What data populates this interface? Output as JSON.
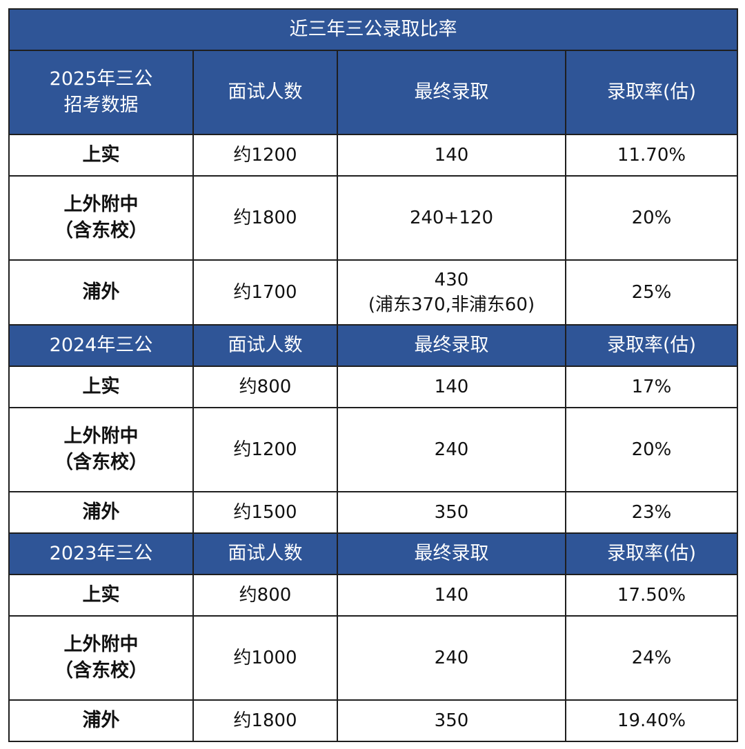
{
  "title": "近三年三公录取比率",
  "sections": [
    {
      "header": {
        "label_l1": "2025年三公",
        "label_l2": "招考数据",
        "col2": "面试人数",
        "col3": "最终录取",
        "col4": "录取率(估)"
      },
      "rows": [
        {
          "school_l1": "上实",
          "school_l2": "",
          "interviews": "约1200",
          "admitted_l1": "140",
          "admitted_l2": "",
          "rate": "11.70%"
        },
        {
          "school_l1": "上外附中",
          "school_l2": "（含东校）",
          "interviews": "约1800",
          "admitted_l1": "240+120",
          "admitted_l2": "",
          "rate": "20%"
        },
        {
          "school_l1": "浦外",
          "school_l2": "",
          "interviews": "约1700",
          "admitted_l1": "430",
          "admitted_l2": "(浦东370,非浦东60)",
          "rate": "25%"
        }
      ]
    },
    {
      "header": {
        "label_l1": "2024年三公",
        "label_l2": "",
        "col2": "面试人数",
        "col3": "最终录取",
        "col4": "录取率(估)"
      },
      "rows": [
        {
          "school_l1": "上实",
          "school_l2": "",
          "interviews": "约800",
          "admitted_l1": "140",
          "admitted_l2": "",
          "rate": "17%"
        },
        {
          "school_l1": "上外附中",
          "school_l2": "（含东校）",
          "interviews": "约1200",
          "admitted_l1": "240",
          "admitted_l2": "",
          "rate": "20%"
        },
        {
          "school_l1": "浦外",
          "school_l2": "",
          "interviews": "约1500",
          "admitted_l1": "350",
          "admitted_l2": "",
          "rate": "23%"
        }
      ]
    },
    {
      "header": {
        "label_l1": "2023年三公",
        "label_l2": "",
        "col2": "面试人数",
        "col3": "最终录取",
        "col4": "录取率(估)"
      },
      "rows": [
        {
          "school_l1": "上实",
          "school_l2": "",
          "interviews": "约800",
          "admitted_l1": "140",
          "admitted_l2": "",
          "rate": "17.50%"
        },
        {
          "school_l1": "上外附中",
          "school_l2": "（含东校）",
          "interviews": "约1000",
          "admitted_l1": "240",
          "admitted_l2": "",
          "rate": "24%"
        },
        {
          "school_l1": "浦外",
          "school_l2": "",
          "interviews": "约1800",
          "admitted_l1": "350",
          "admitted_l2": "",
          "rate": "19.40%"
        }
      ]
    }
  ],
  "colors": {
    "header_bg": "#2f5597",
    "header_text": "#ffffff",
    "border": "#1e1e1e"
  }
}
